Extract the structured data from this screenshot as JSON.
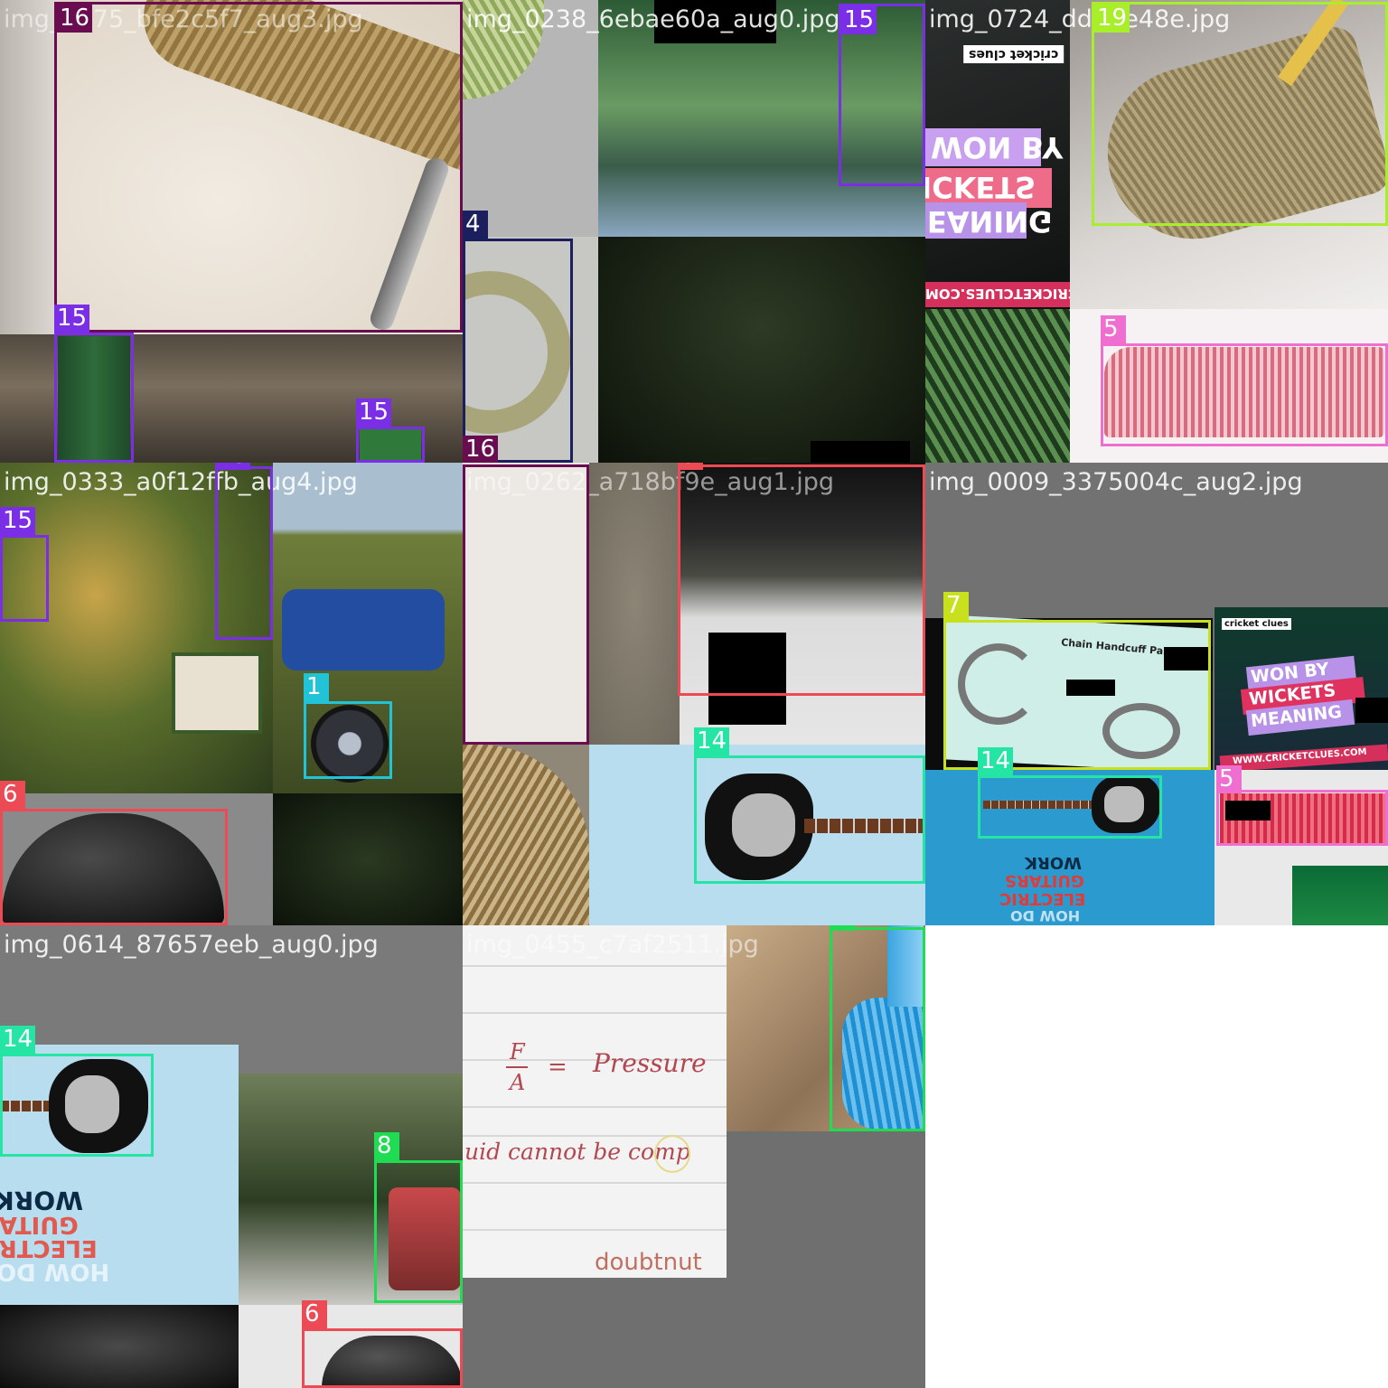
{
  "tiles": [
    {
      "filename": "img_0075_bfe2c5f7_aug3.jpg"
    },
    {
      "filename": "img_0238_6ebae60a_aug0.jpg"
    },
    {
      "filename": "img_0724_dd03e48e.jpg"
    },
    {
      "filename": "img_0333_a0f12ffb_aug4.jpg"
    },
    {
      "filename": "img_0262_a718bf9e_aug1.jpg"
    },
    {
      "filename": "img_0009_3375004c_aug2.jpg"
    },
    {
      "filename": "img_0614_87657eeb_aug0.jpg"
    },
    {
      "filename": "img_0455_c7af2511.jpg"
    }
  ],
  "class_colors": {
    "1": "#22c3d6",
    "4": "#1b1f5e",
    "5": "#ee6fd0",
    "6": "#ec4b55",
    "7": "#c8e01e",
    "8": "#1fdc52",
    "14": "#25e5a4",
    "15": "#7a2ee6",
    "16": "#6a0d50",
    "19": "#a8ee2a"
  },
  "labels": {
    "b1": "16",
    "b2": "15",
    "b3": "15",
    "b4": "15",
    "b5": "15",
    "b6": "4",
    "b7": "16",
    "b8": "19",
    "b9": "5",
    "b10": "15",
    "b11": "1",
    "b12": "6",
    "b13": "6",
    "b14": "14",
    "b15": "7",
    "b16": "14",
    "b17": "5",
    "b18": "14",
    "b19": "8",
    "b20": "6",
    "b21": "8"
  },
  "artwork_text": {
    "cricket_logo": "cricket clues",
    "won_by": "WON BY",
    "wickets": "WICKETS",
    "meaning": "MEANING",
    "cricket_url": "WWW.CRICKETCLUES.COM",
    "handcuff_title": "Chain Handcuff Parts",
    "how_do": "HOW DO",
    "electric": "ELECTRIC",
    "guitars": "GUITARS",
    "work": "WORK",
    "formula_lhs_num": "F",
    "formula_lhs_den": "A",
    "formula_eq": "=",
    "formula_rhs": "Pressure",
    "note_line": "uid cannot be comp",
    "watermark": "doubtnut"
  }
}
